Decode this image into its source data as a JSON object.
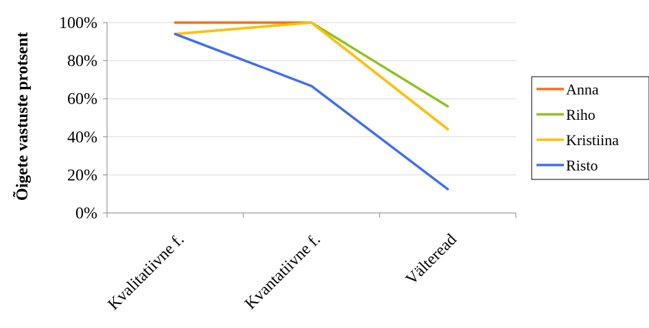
{
  "chart_data": {
    "type": "line",
    "categories": [
      "Kvalitatiivne f.",
      "Kvantatiivne f.",
      "Välteread"
    ],
    "series": [
      {
        "name": "Anna",
        "values": [
          100,
          100,
          44
        ],
        "color": "#ff6a13"
      },
      {
        "name": "Riho",
        "values": [
          94,
          100,
          56
        ],
        "color": "#8dc21f"
      },
      {
        "name": "Kristiina",
        "values": [
          94,
          100,
          44
        ],
        "color": "#ffc000"
      },
      {
        "name": "Risto",
        "values": [
          94,
          66.7,
          12.5
        ],
        "color": "#3f6ef0"
      }
    ],
    "ylabel": "Õigete vastuste protsent",
    "ylim": [
      0,
      100
    ],
    "yticks": [
      "0%",
      "20%",
      "40%",
      "60%",
      "80%",
      "100%"
    ],
    "ytick_values": [
      0,
      20,
      40,
      60,
      80,
      100
    ],
    "grid": true,
    "legend": "right"
  }
}
